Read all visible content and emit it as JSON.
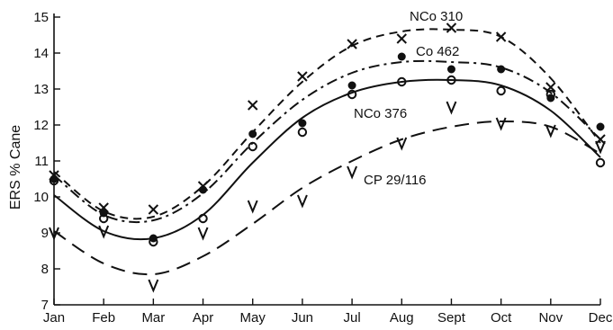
{
  "chart_data": {
    "type": "line",
    "title": "",
    "xlabel": "",
    "ylabel": "ERS % Cane",
    "categories": [
      "Jan",
      "Feb",
      "Mar",
      "Apr",
      "May",
      "Jun",
      "Jul",
      "Aug",
      "Sept",
      "Oct",
      "Nov",
      "Dec"
    ],
    "ylim": [
      7,
      15
    ],
    "yticks": [
      7,
      8,
      9,
      10,
      11,
      12,
      13,
      14,
      15
    ],
    "grid": false,
    "legend": "none",
    "series": [
      {
        "name": "NCo 310",
        "marker": "x",
        "line_style": "short-dash",
        "points": [
          10.6,
          9.7,
          9.65,
          10.3,
          12.55,
          13.35,
          14.25,
          14.4,
          14.7,
          14.45,
          13.05,
          11.6
        ],
        "curve": [
          10.7,
          9.6,
          9.45,
          10.3,
          11.8,
          13.2,
          14.2,
          14.6,
          14.65,
          14.45,
          13.3,
          11.5
        ]
      },
      {
        "name": "Co 462",
        "marker": "filled-circle",
        "line_style": "dash-dot",
        "points": [
          10.5,
          9.55,
          8.85,
          10.2,
          11.75,
          12.05,
          13.1,
          13.9,
          13.55,
          13.55,
          12.75,
          11.95
        ],
        "curve": [
          10.6,
          9.5,
          9.35,
          10.1,
          11.5,
          12.7,
          13.45,
          13.75,
          13.75,
          13.6,
          12.9,
          11.6
        ]
      },
      {
        "name": "NCo 376",
        "marker": "open-circle",
        "line_style": "solid",
        "points": [
          10.45,
          9.4,
          8.75,
          9.4,
          11.4,
          11.8,
          12.85,
          13.2,
          13.25,
          12.95,
          12.85,
          10.95
        ],
        "curve": [
          10.05,
          9.05,
          8.85,
          9.5,
          10.95,
          12.2,
          12.9,
          13.2,
          13.25,
          13.1,
          12.4,
          11.1
        ]
      },
      {
        "name": "CP 29/116",
        "marker": "v",
        "line_style": "long-dash",
        "points": [
          9.0,
          9.05,
          7.55,
          9.0,
          9.75,
          9.9,
          10.7,
          11.5,
          12.5,
          12.05,
          11.85,
          11.4
        ],
        "curve": [
          9.05,
          8.15,
          7.85,
          8.35,
          9.25,
          10.25,
          11.0,
          11.6,
          11.95,
          12.1,
          11.95,
          11.2
        ]
      }
    ],
    "annotations": [
      "NCo 310",
      "Co 462",
      "NCo 376",
      "CP 29/116"
    ]
  }
}
